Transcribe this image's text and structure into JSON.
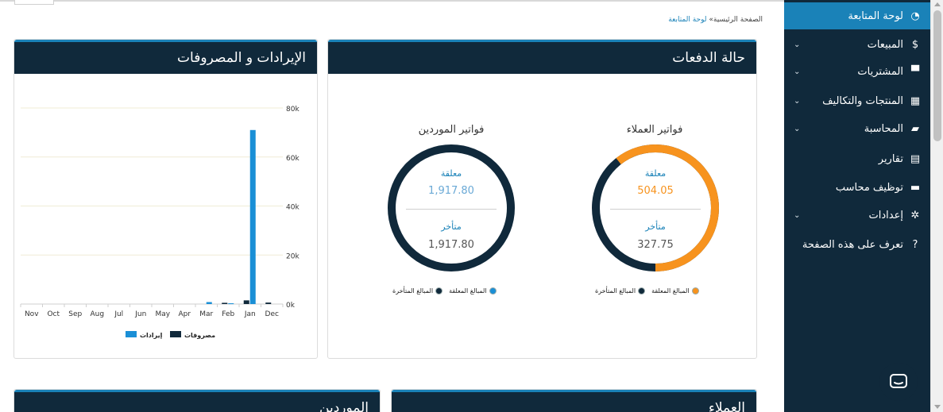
{
  "sidebar": {
    "items": [
      {
        "label": "لوحة المتابعة",
        "icon": "dashboard-icon",
        "glyph": "◔",
        "active": true,
        "chevron": false
      },
      {
        "label": "المبيعات",
        "icon": "dollar-icon",
        "glyph": "$",
        "active": false,
        "chevron": true
      },
      {
        "label": "المشتريات",
        "icon": "cart-icon",
        "glyph": "▀",
        "active": false,
        "chevron": true
      },
      {
        "label": "المنتجات والتكاليف",
        "icon": "grid-icon",
        "glyph": "▦",
        "active": false,
        "chevron": true
      },
      {
        "label": "المحاسبة",
        "icon": "folder-open-icon",
        "glyph": "▰",
        "active": false,
        "chevron": true
      },
      {
        "label": "تقارير",
        "icon": "file-icon",
        "glyph": "▤",
        "active": false,
        "chevron": false
      },
      {
        "label": "توظيف محاسب",
        "icon": "truck-icon",
        "glyph": "▬",
        "active": false,
        "chevron": false
      },
      {
        "label": "إعدادات",
        "icon": "gear-icon",
        "glyph": "✲",
        "active": false,
        "chevron": true
      },
      {
        "label": "تعرف على هذه الصفحة",
        "icon": "question-circle-icon",
        "glyph": "?",
        "active": false,
        "chevron": false
      }
    ]
  },
  "breadcrumb": {
    "home": "الصفحة الرئيسية",
    "sep": "»",
    "current": "لوحة المتابعة"
  },
  "payments": {
    "title": "حالة الدفعات",
    "customers": {
      "title": "فواتير العملاء",
      "open_label": "معلقة",
      "open_value": "504.05",
      "overdue_label": "متأخر",
      "overdue_value": "327.75",
      "open_fraction": 0.606,
      "open_color": "#f7931e",
      "overdue_color": "#10293b",
      "legend": {
        "open": "المبالغ المعلقة",
        "overdue": "المبالغ المتأخرة"
      }
    },
    "suppliers": {
      "title": "فواتير الموردين",
      "open_label": "معلقة",
      "open_value": "1,917.80",
      "overdue_label": "متأخر",
      "overdue_value": "1,917.80",
      "open_fraction": 0,
      "open_color": "#1a8fd6",
      "overdue_color": "#10293b",
      "legend": {
        "open": "المبالغ المعلقة",
        "overdue": "المبالغ المتأخرة"
      }
    }
  },
  "income_expenses": {
    "title": "الإيرادات و المصروفات"
  },
  "chart_data": {
    "type": "bar",
    "categories": [
      "Nov",
      "Oct",
      "Sep",
      "Aug",
      "Jul",
      "Jun",
      "May",
      "Apr",
      "Mar",
      "Feb",
      "Jan",
      "Dec"
    ],
    "series": [
      {
        "name": "إيرادات",
        "color": "#1a8fd6",
        "values": [
          0,
          0,
          0,
          0,
          0,
          0,
          0,
          0,
          800,
          300,
          71000,
          0
        ]
      },
      {
        "name": "مصروفات",
        "color": "#10293b",
        "values": [
          0,
          0,
          0,
          0,
          0,
          0,
          0,
          0,
          0,
          500,
          1500,
          600
        ]
      }
    ],
    "y_ticks": [
      "0k",
      "20k",
      "40k",
      "60k",
      "80k"
    ],
    "ylim": [
      0,
      80000
    ],
    "legend_position": "bottom",
    "grid": true
  },
  "bottom_cards": {
    "customers_title": "العملاء",
    "suppliers_title": "الموردين"
  },
  "chat": {
    "icon": "chat-icon"
  }
}
